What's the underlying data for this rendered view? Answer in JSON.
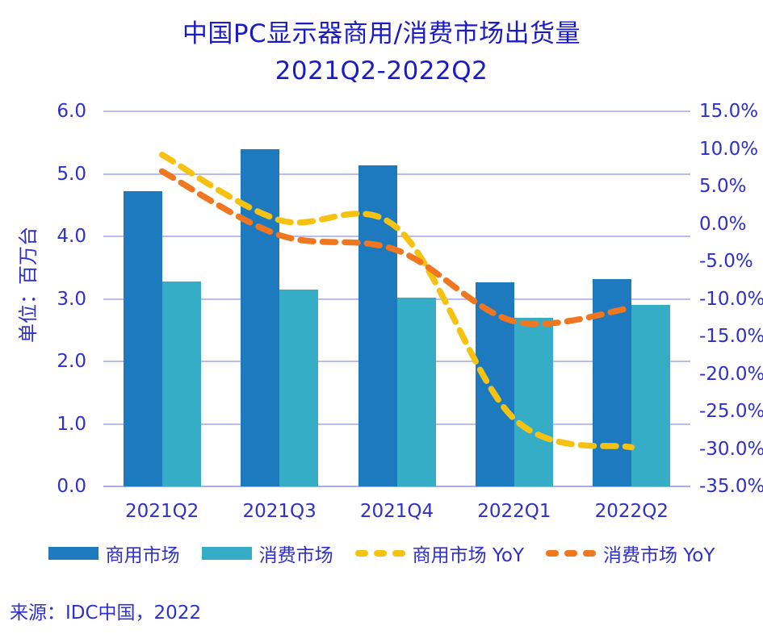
{
  "title": {
    "line1": "中国PC显示器商用/消费市场出货量",
    "line2": "2021Q2-2022Q2"
  },
  "source": "来源：IDC中国，2022",
  "colors": {
    "commercial": "#1E7ABE",
    "consumer": "#36ADC7",
    "commercial_yoy": "#F5C211",
    "consumer_yoy": "#F0761F",
    "grid": "#BABCEF",
    "axis_line": "#A9ACE8",
    "text": "#2F2FCB",
    "title_text": "#1B1BC6"
  },
  "chart_data": {
    "type": "bar+line combo",
    "title": "中国PC显示器商用/消费市场出货量 2021Q2-2022Q2",
    "categories": [
      "2021Q2",
      "2021Q3",
      "2021Q4",
      "2022Q1",
      "2022Q2"
    ],
    "series": [
      {
        "key": "commercial",
        "name": "商用市场",
        "type": "bar",
        "axis": "left",
        "values": [
          4.72,
          5.4,
          5.13,
          3.27,
          3.32
        ]
      },
      {
        "key": "consumer",
        "name": "消费市场",
        "type": "bar",
        "axis": "left",
        "values": [
          3.28,
          3.15,
          3.02,
          2.7,
          2.91
        ]
      },
      {
        "key": "commercial_yoy",
        "name": "商用市场 YoY",
        "type": "dashed-line",
        "axis": "right",
        "values_pct": [
          9.2,
          0.5,
          -0.5,
          -26.0,
          -29.8
        ]
      },
      {
        "key": "consumer_yoy",
        "name": "消费市场 YoY",
        "type": "dashed-line",
        "axis": "right",
        "values_pct": [
          7.0,
          -1.5,
          -3.5,
          -13.0,
          -11.2
        ]
      }
    ],
    "left_axis": {
      "title": "单位：百万台",
      "min": 0,
      "max": 6,
      "step": 1,
      "ticks": [
        "6.0",
        "5.0",
        "4.0",
        "3.0",
        "2.0",
        "1.0",
        "0.0"
      ]
    },
    "right_axis": {
      "min": -35,
      "max": 15,
      "step": 5,
      "ticks": [
        "15.0%",
        "10.0%",
        "5.0%",
        "0.0%",
        "-5.0%",
        "-10.0%",
        "-15.0%",
        "-20.0%",
        "-25.0%",
        "-30.0%",
        "-35.0%"
      ]
    },
    "grid": "horizontal only",
    "legend_position": "bottom"
  }
}
